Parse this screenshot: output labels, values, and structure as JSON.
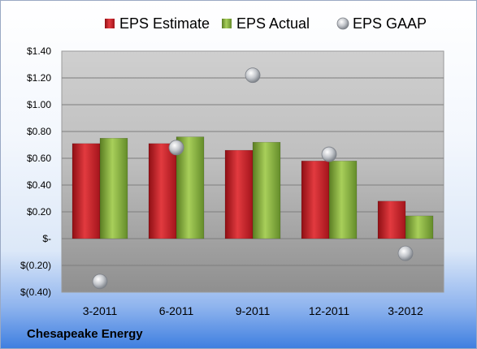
{
  "chart_data": {
    "type": "bar",
    "title": "",
    "xlabel": "",
    "ylabel": "",
    "categories": [
      "3-2011",
      "6-2011",
      "9-2011",
      "12-2011",
      "3-2012"
    ],
    "series": [
      {
        "name": "EPS Estimate",
        "kind": "bar",
        "color": "#c8202a",
        "values": [
          0.71,
          0.71,
          0.66,
          0.58,
          0.28
        ]
      },
      {
        "name": "EPS Actual",
        "kind": "bar",
        "color": "#7ba23a",
        "values": [
          0.75,
          0.76,
          0.72,
          0.58,
          0.17
        ]
      },
      {
        "name": "EPS GAAP",
        "kind": "marker",
        "color": "#b0b4ba",
        "values": [
          -0.32,
          0.68,
          1.22,
          0.63,
          -0.11
        ]
      }
    ],
    "ylim": [
      -0.4,
      1.4
    ],
    "yticks": [
      -0.4,
      -0.2,
      0,
      0.2,
      0.4,
      0.6,
      0.8,
      1.0,
      1.2,
      1.4
    ],
    "ytick_labels": [
      "$(0.40)",
      "$(0.20)",
      "$-",
      "$0.20",
      "$0.40",
      "$0.60",
      "$0.80",
      "$1.00",
      "$1.20",
      "$1.40"
    ],
    "grid": true,
    "legend_position": "top"
  },
  "footer": {
    "company": "Chesapeake Energy"
  }
}
